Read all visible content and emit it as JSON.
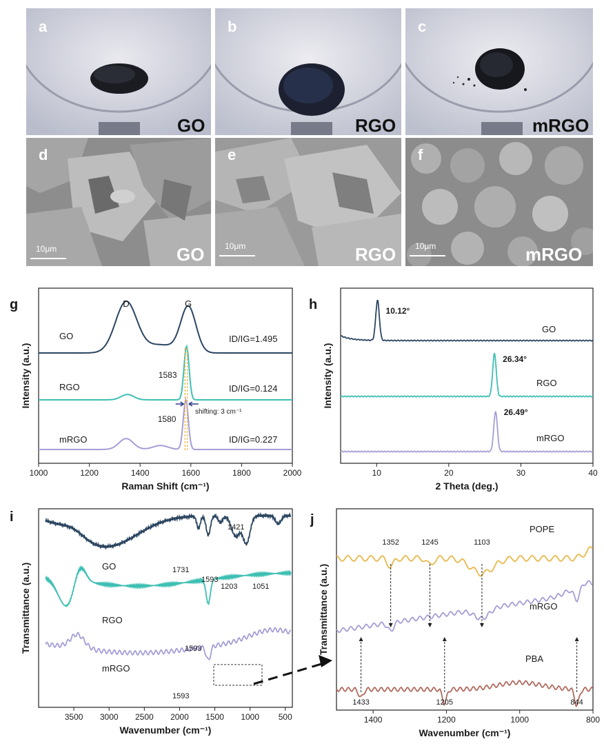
{
  "photos": [
    {
      "letter": "a",
      "label": "GO"
    },
    {
      "letter": "b",
      "label": "RGO"
    },
    {
      "letter": "c",
      "label": "mRGO"
    }
  ],
  "sem": [
    {
      "letter": "d",
      "label": "GO",
      "scale": "10μm"
    },
    {
      "letter": "e",
      "label": "RGO",
      "scale": "10μm"
    },
    {
      "letter": "f",
      "label": "mRGO",
      "scale": "10μm"
    }
  ],
  "colors": {
    "GO": "#2b4560",
    "RGO": "#3dbfb2",
    "mRGO": "#a39ed6",
    "POPE": "#e8b84a",
    "PBA": "#b06a5e",
    "shift_lines": "#f0b040"
  },
  "chart_data": [
    {
      "panel": "g",
      "type": "line",
      "xlabel": "Raman Shift (cm⁻¹)",
      "ylabel": "Intensity (a.u.)",
      "xlim": [
        1000,
        2000
      ],
      "xticks": [
        1000,
        1200,
        1400,
        1600,
        1800,
        2000
      ],
      "peak_labels": [
        "D",
        "G"
      ],
      "series": [
        {
          "name": "GO",
          "ratio_label": "ID/IG=1.495",
          "D_peak": 1345,
          "G_peak": 1590,
          "points": [
            [
              1000,
              0.03
            ],
            [
              1100,
              0.06
            ],
            [
              1200,
              0.2
            ],
            [
              1280,
              0.65
            ],
            [
              1345,
              0.95
            ],
            [
              1420,
              0.45
            ],
            [
              1480,
              0.38
            ],
            [
              1540,
              0.6
            ],
            [
              1590,
              0.85
            ],
            [
              1640,
              0.35
            ],
            [
              1700,
              0.08
            ],
            [
              1800,
              0.02
            ],
            [
              2000,
              0.0
            ]
          ]
        },
        {
          "name": "RGO",
          "ratio_label": "ID/IG=0.124",
          "G_peak": 1583,
          "G_label": "1583",
          "points": [
            [
              1000,
              0.0
            ],
            [
              1300,
              0.03
            ],
            [
              1350,
              0.1
            ],
            [
              1400,
              0.03
            ],
            [
              1540,
              0.05
            ],
            [
              1565,
              0.5
            ],
            [
              1583,
              1.0
            ],
            [
              1600,
              0.5
            ],
            [
              1625,
              0.03
            ],
            [
              2000,
              0.0
            ]
          ]
        },
        {
          "name": "mRGO",
          "ratio_label": "ID/IG=0.227",
          "G_peak": 1580,
          "G_label": "1580",
          "points": [
            [
              1000,
              0.0
            ],
            [
              1250,
              0.05
            ],
            [
              1345,
              0.22
            ],
            [
              1420,
              0.06
            ],
            [
              1480,
              0.1
            ],
            [
              1540,
              0.08
            ],
            [
              1560,
              0.4
            ],
            [
              1580,
              1.0
            ],
            [
              1600,
              0.4
            ],
            [
              1625,
              0.03
            ],
            [
              2000,
              0.0
            ]
          ]
        }
      ],
      "annotation": "shifting: 3 cm⁻¹"
    },
    {
      "panel": "h",
      "type": "line",
      "xlabel": "2 Theta (deg.)",
      "ylabel": "Intensity (a.u.)",
      "xlim": [
        5,
        40
      ],
      "xticks": [
        10,
        20,
        30,
        40
      ],
      "series": [
        {
          "name": "GO",
          "peak": 10.12,
          "peak_label": "10.12°"
        },
        {
          "name": "RGO",
          "peak": 26.34,
          "peak_label": "26.34°"
        },
        {
          "name": "mRGO",
          "peak": 26.49,
          "peak_label": "26.49°"
        }
      ]
    },
    {
      "panel": "i",
      "type": "line",
      "xlabel": "Wavenumber (cm⁻¹)",
      "ylabel": "Transmittance (a.u.)",
      "xlim": [
        4000,
        400
      ],
      "xticks": [
        3500,
        3000,
        2500,
        2000,
        1500,
        1000,
        500
      ],
      "series": [
        {
          "name": "GO",
          "bands": [
            "1731",
            "1593",
            "1421",
            "1203",
            "1051"
          ]
        },
        {
          "name": "RGO",
          "bands": [
            "1593"
          ]
        },
        {
          "name": "mRGO",
          "bands": [
            "1593"
          ]
        }
      ]
    },
    {
      "panel": "j",
      "type": "line",
      "xlabel": "Wavenumber (cm⁻¹)",
      "ylabel": "Transmittance (a.u.)",
      "xlim": [
        1500,
        800
      ],
      "xticks": [
        1400,
        1200,
        1000,
        800
      ],
      "series": [
        {
          "name": "POPE",
          "bands": [
            "1352",
            "1245",
            "1103"
          ]
        },
        {
          "name": "mRGO",
          "bands": []
        },
        {
          "name": "PBA",
          "bands": [
            "1433",
            "1205",
            "844"
          ]
        }
      ]
    }
  ]
}
